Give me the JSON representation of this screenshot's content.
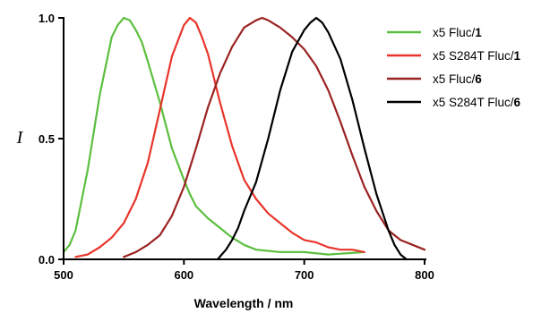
{
  "chart_data": {
    "type": "line",
    "title": "",
    "xlabel": "Wavelength / nm",
    "ylabel": "I",
    "xlim": [
      500,
      800
    ],
    "ylim": [
      0,
      1
    ],
    "xticks": [
      "500",
      "600",
      "700",
      "800"
    ],
    "yticks": [
      "0.0",
      "0.5",
      "1.0"
    ],
    "grid": false,
    "legend_position": "right",
    "series": [
      {
        "name": "x5 Fluc/1",
        "name_prefix": "x5 Fluc/",
        "name_suffix": "1",
        "color": "#5cbf3f",
        "x": [
          500,
          505,
          510,
          520,
          530,
          540,
          545,
          550,
          555,
          560,
          565,
          570,
          580,
          590,
          600,
          605,
          610,
          620,
          630,
          640,
          650,
          660,
          680,
          700,
          720,
          750
        ],
        "y": [
          0.03,
          0.06,
          0.12,
          0.37,
          0.68,
          0.92,
          0.97,
          1.0,
          0.99,
          0.95,
          0.9,
          0.82,
          0.65,
          0.46,
          0.33,
          0.27,
          0.22,
          0.17,
          0.13,
          0.09,
          0.06,
          0.04,
          0.03,
          0.03,
          0.02,
          0.03
        ]
      },
      {
        "name": "x5 S284T Fluc/1",
        "name_prefix": "x5 S284T Fluc/",
        "name_suffix": "1",
        "color": "#e8352b",
        "x": [
          510,
          520,
          530,
          540,
          550,
          560,
          570,
          580,
          590,
          600,
          605,
          610,
          615,
          620,
          630,
          640,
          650,
          660,
          670,
          680,
          690,
          700,
          710,
          720,
          730,
          740,
          750
        ],
        "y": [
          0.01,
          0.02,
          0.05,
          0.09,
          0.15,
          0.25,
          0.4,
          0.62,
          0.84,
          0.97,
          1.0,
          0.98,
          0.92,
          0.85,
          0.65,
          0.47,
          0.33,
          0.25,
          0.19,
          0.15,
          0.11,
          0.08,
          0.07,
          0.05,
          0.04,
          0.04,
          0.03
        ]
      },
      {
        "name": "x5 Fluc/6",
        "name_prefix": "x5 Fluc/",
        "name_suffix": "6",
        "color": "#9b2222",
        "x": [
          550,
          560,
          570,
          580,
          590,
          600,
          610,
          620,
          630,
          640,
          650,
          660,
          665,
          670,
          680,
          690,
          700,
          710,
          720,
          730,
          740,
          750,
          760,
          770,
          780,
          790,
          800
        ],
        "y": [
          0.01,
          0.03,
          0.06,
          0.1,
          0.18,
          0.3,
          0.46,
          0.63,
          0.77,
          0.88,
          0.96,
          0.99,
          1.0,
          0.99,
          0.96,
          0.92,
          0.87,
          0.8,
          0.7,
          0.57,
          0.43,
          0.3,
          0.2,
          0.12,
          0.08,
          0.06,
          0.04
        ]
      },
      {
        "name": "x5 S284T Fluc/6",
        "name_prefix": "x5 S284T Fluc/",
        "name_suffix": "6",
        "color": "#000000",
        "x": [
          628,
          635,
          640,
          645,
          650,
          660,
          670,
          680,
          690,
          700,
          705,
          710,
          715,
          720,
          730,
          740,
          750,
          760,
          770,
          775,
          780,
          785
        ],
        "y": [
          0.0,
          0.04,
          0.08,
          0.13,
          0.2,
          0.32,
          0.5,
          0.7,
          0.86,
          0.95,
          0.98,
          1.0,
          0.98,
          0.94,
          0.83,
          0.66,
          0.46,
          0.27,
          0.12,
          0.06,
          0.02,
          0.0
        ]
      }
    ]
  }
}
